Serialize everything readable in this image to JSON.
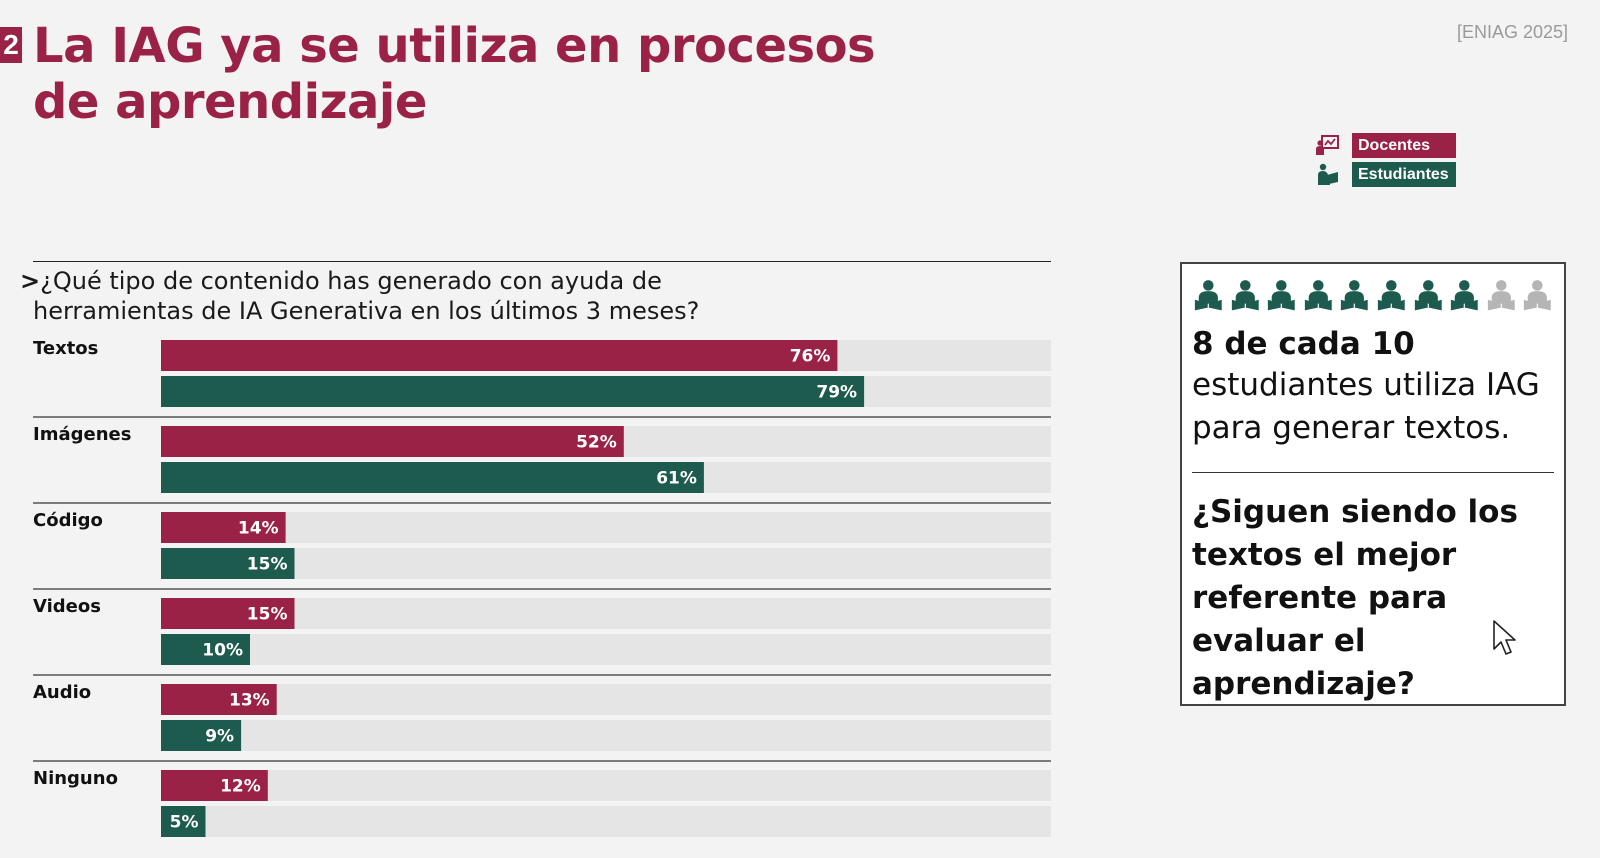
{
  "slide_number": "2",
  "title_line1": "La IAG ya se utiliza en procesos",
  "title_line2": "de aprendizaje",
  "source": "[ENIAG 2025]",
  "legend": [
    {
      "label": "Docentes",
      "icon": "teacher-board-icon",
      "color": "#9b2247"
    },
    {
      "label": "Estudiantes",
      "icon": "student-reading-icon",
      "color": "#1e5b4f"
    }
  ],
  "question_prefix": ">",
  "question_line1": "¿Qué tipo de contenido has generado con ayuda de",
  "question_line2": "herramientas de IA Generativa en los últimos 3 meses?",
  "chart_data": {
    "type": "bar",
    "orientation": "horizontal",
    "categories": [
      "Textos",
      "Imágenes",
      "Código",
      "Videos",
      "Audio",
      "Ninguno"
    ],
    "series": [
      {
        "name": "Docentes",
        "color": "#9b2247",
        "values": [
          76,
          52,
          14,
          15,
          13,
          12
        ]
      },
      {
        "name": "Estudiantes",
        "color": "#1e5b4f",
        "values": [
          79,
          61,
          15,
          10,
          9,
          5
        ]
      }
    ],
    "value_suffix": "%",
    "xlim": [
      0,
      100
    ],
    "track_color": "#e5e5e5",
    "legend_placement": "top-right"
  },
  "callout": {
    "people_total": 10,
    "people_filled": 8,
    "filled_color": "#1e5b4f",
    "empty_color": "#b5b5b5",
    "stat_bold": "8 de cada 10",
    "stat_line1": "estudiantes utiliza IAG",
    "stat_line2": "para generar textos.",
    "question_lines": [
      "¿Siguen siendo los",
      "textos el mejor",
      "referente para",
      "evaluar el",
      "aprendizaje?"
    ]
  }
}
